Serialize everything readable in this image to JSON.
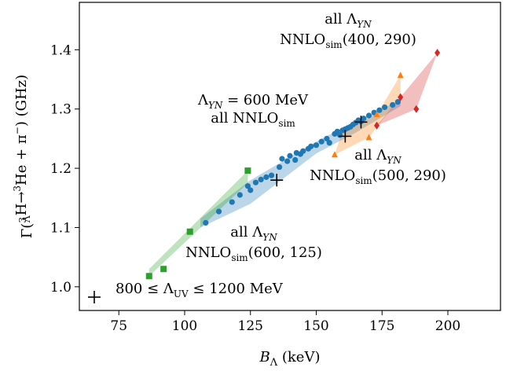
{
  "chart_data": {
    "type": "scatter",
    "xlabel": "B_Λ (keV)",
    "ylabel": "Γ(³_ΛH→³He + π⁻) (GHz)",
    "xlim": [
      60,
      220
    ],
    "ylim": [
      0.96,
      1.48
    ],
    "x_ticks": [
      75,
      100,
      125,
      150,
      175,
      200
    ],
    "y_ticks": [
      1.0,
      1.1,
      1.2,
      1.3,
      1.4
    ],
    "x_tick_labels": [
      "75",
      "100",
      "125",
      "150",
      "175",
      "200"
    ],
    "y_tick_labels": [
      "1.0",
      "1.1",
      "1.2",
      "1.3",
      "1.4"
    ],
    "grid": false,
    "colors": {
      "blue": "#1f77b4",
      "green": "#2ca02c",
      "orange": "#ff7f0e",
      "red": "#d62728"
    },
    "series": [
      {
        "color": "#1f77b4",
        "marker": "circle",
        "points": [
          [
            108,
            1.108
          ],
          [
            113,
            1.127
          ],
          [
            118,
            1.143
          ],
          [
            121,
            1.155
          ],
          [
            124,
            1.17
          ],
          [
            125,
            1.163
          ],
          [
            127,
            1.176
          ],
          [
            129,
            1.181
          ],
          [
            131,
            1.185
          ],
          [
            133,
            1.188
          ],
          [
            136,
            1.202
          ],
          [
            137,
            1.216
          ],
          [
            139,
            1.212
          ],
          [
            140,
            1.221
          ],
          [
            142,
            1.214
          ],
          [
            142.5,
            1.226
          ],
          [
            144,
            1.224
          ],
          [
            145,
            1.229
          ],
          [
            147,
            1.233
          ],
          [
            148,
            1.237
          ],
          [
            150,
            1.239
          ],
          [
            152,
            1.245
          ],
          [
            154,
            1.25
          ],
          [
            155,
            1.243
          ],
          [
            157,
            1.258
          ],
          [
            158,
            1.262
          ],
          [
            159,
            1.256
          ],
          [
            160,
            1.264
          ],
          [
            161,
            1.266
          ],
          [
            162,
            1.268
          ],
          [
            163,
            1.27
          ],
          [
            164,
            1.274
          ],
          [
            165,
            1.277
          ],
          [
            166,
            1.281
          ],
          [
            167,
            1.279
          ],
          [
            168,
            1.284
          ],
          [
            170,
            1.289
          ],
          [
            172,
            1.294
          ],
          [
            174,
            1.298
          ],
          [
            176,
            1.303
          ],
          [
            179,
            1.307
          ],
          [
            181,
            1.312
          ]
        ],
        "band": [
          [
            106,
            1.1
          ],
          [
            125,
            1.14
          ],
          [
            150,
            1.225
          ],
          [
            165,
            1.26
          ],
          [
            182,
            1.305
          ],
          [
            182,
            1.315
          ],
          [
            165,
            1.28
          ],
          [
            150,
            1.245
          ],
          [
            125,
            1.18
          ],
          [
            106,
            1.115
          ]
        ]
      },
      {
        "color": "#2ca02c",
        "marker": "square",
        "points": [
          [
            86.5,
            1.018
          ],
          [
            92,
            1.03
          ],
          [
            102,
            1.093
          ],
          [
            124,
            1.196
          ]
        ],
        "band": [
          [
            86.5,
            1.018
          ],
          [
            124,
            1.175
          ],
          [
            124,
            1.196
          ],
          [
            86.5,
            1.03
          ]
        ]
      },
      {
        "color": "#ff7f0e",
        "marker": "triangle",
        "points": [
          [
            157,
            1.223
          ],
          [
            170,
            1.252
          ],
          [
            173,
            1.291
          ],
          [
            182,
            1.357
          ]
        ],
        "band": [
          [
            157,
            1.223
          ],
          [
            170,
            1.252
          ],
          [
            182,
            1.32
          ],
          [
            182,
            1.357
          ],
          [
            173,
            1.291
          ],
          [
            160,
            1.262
          ]
        ]
      },
      {
        "color": "#d62728",
        "marker": "diamond",
        "points": [
          [
            173,
            1.272
          ],
          [
            182,
            1.32
          ],
          [
            188,
            1.3
          ],
          [
            196,
            1.395
          ]
        ],
        "band": [
          [
            173,
            1.272
          ],
          [
            188,
            1.3
          ],
          [
            196,
            1.395
          ],
          [
            182,
            1.32
          ]
        ]
      },
      {
        "color": "#000000",
        "marker": "plus",
        "points": [
          [
            135,
            1.18
          ],
          [
            161,
            1.254
          ],
          [
            167,
            1.278
          ]
        ]
      }
    ],
    "annotations": [
      {
        "color": "#1f77b4",
        "line1": "Λ_YN = 600 MeV",
        "line2": "all NNLO_sim"
      },
      {
        "color": "#2ca02c",
        "line1": "all Λ_YN",
        "line2": "NNLO_sim(600, 125)"
      },
      {
        "color": "#ff7f0e",
        "line1": "all Λ_YN",
        "line2": "NNLO_sim(500, 290)"
      },
      {
        "color": "#d62728",
        "line1": "all Λ_YN",
        "line2": "NNLO_sim(400, 290)"
      }
    ],
    "legend": {
      "label": "800 ≤ Λ_UV ≤ 1200 MeV",
      "placement": "lower-left"
    }
  }
}
